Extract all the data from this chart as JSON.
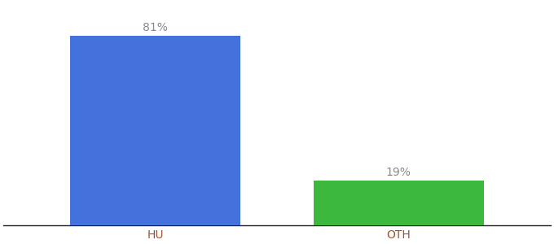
{
  "categories": [
    "HU",
    "OTH"
  ],
  "values": [
    81,
    19
  ],
  "bar_colors": [
    "#4472DD",
    "#3CB93C"
  ],
  "label_texts": [
    "81%",
    "19%"
  ],
  "background_color": "#ffffff",
  "ylim": [
    0,
    95
  ],
  "label_fontsize": 10,
  "tick_fontsize": 10,
  "tick_color": "#a0522d",
  "bar_width": 0.28,
  "x_positions": [
    0.3,
    0.7
  ]
}
